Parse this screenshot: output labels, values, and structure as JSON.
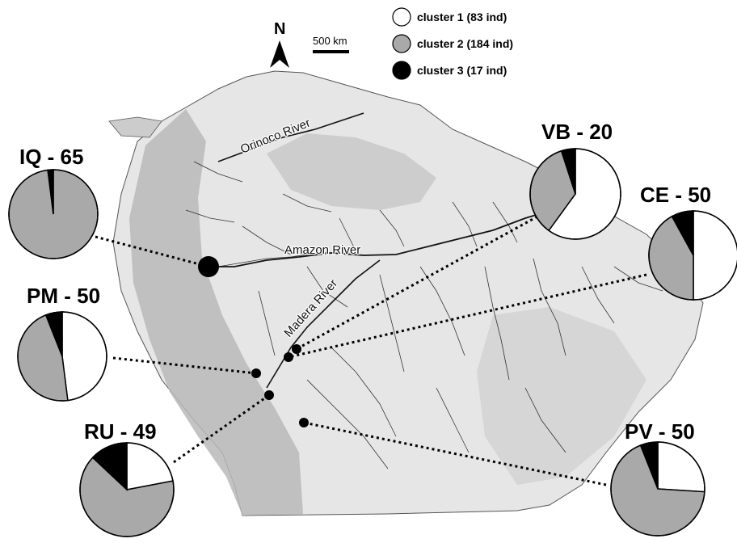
{
  "legend": {
    "items": [
      {
        "label": "cluster 1 (83 ind)",
        "color": "#ffffff"
      },
      {
        "label": "cluster 2 (184 ind)",
        "color": "#a9a9a9"
      },
      {
        "label": "cluster 3 (17 ind)",
        "color": "#000000"
      }
    ]
  },
  "north_arrow": {
    "label": "N"
  },
  "scale_bar": {
    "label": "500 km"
  },
  "rivers": {
    "orinoco": "Orinoco River",
    "amazon": "Amazon River",
    "madera": "Madera River"
  },
  "sites": [
    {
      "id": "IQ",
      "label": "IQ - 65",
      "fractions": [
        0.0,
        0.98,
        0.02
      ]
    },
    {
      "id": "VB",
      "label": "VB - 20",
      "fractions": [
        0.6,
        0.35,
        0.05
      ]
    },
    {
      "id": "CE",
      "label": "CE - 50",
      "fractions": [
        0.5,
        0.42,
        0.08
      ]
    },
    {
      "id": "PM",
      "label": "PM - 50",
      "fractions": [
        0.48,
        0.46,
        0.06
      ]
    },
    {
      "id": "RU",
      "label": "RU - 49",
      "fractions": [
        0.22,
        0.65,
        0.13
      ]
    },
    {
      "id": "PV",
      "label": "PV - 50",
      "fractions": [
        0.26,
        0.68,
        0.06
      ]
    }
  ]
}
